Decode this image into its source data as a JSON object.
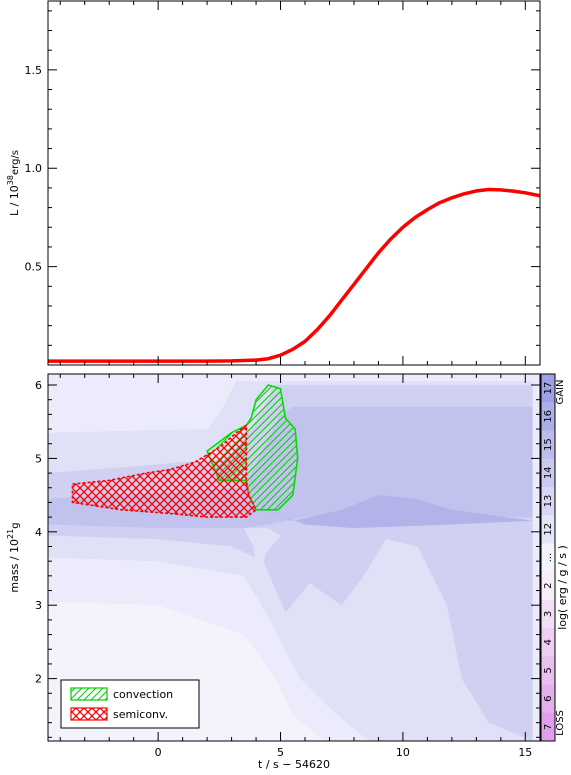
{
  "chart_data": [
    {
      "type": "line",
      "panel": "top",
      "xlabel": "",
      "ylabel": "L / 10^38 erg/s",
      "ylabel_base": "L / 10",
      "ylabel_exp": "38",
      "ylabel_unit": "erg/s",
      "xlim": [
        -4.5,
        15.6
      ],
      "ylim": [
        0.0,
        1.85
      ],
      "yticks": [
        0.5,
        1.0,
        1.5
      ],
      "ytick_labels": [
        "0.5",
        "1.0",
        "1.5"
      ],
      "line_color": "#ff0000",
      "series": [
        {
          "x": [
            -4.5,
            -2,
            0,
            2,
            3,
            4,
            4.5,
            5,
            5.5,
            6,
            6.5,
            7,
            7.5,
            8,
            8.5,
            9,
            9.5,
            10,
            10.5,
            11,
            11.5,
            12,
            12.5,
            13,
            13.5,
            14,
            14.5,
            15,
            15.6
          ],
          "y": [
            0.02,
            0.02,
            0.02,
            0.02,
            0.021,
            0.025,
            0.032,
            0.05,
            0.08,
            0.12,
            0.18,
            0.25,
            0.33,
            0.41,
            0.49,
            0.57,
            0.64,
            0.7,
            0.75,
            0.79,
            0.825,
            0.85,
            0.87,
            0.885,
            0.892,
            0.89,
            0.884,
            0.875,
            0.86
          ]
        }
      ]
    },
    {
      "type": "heatmap",
      "panel": "bottom",
      "xlabel": "t / s − 54620",
      "ylabel": "mass / 10^21 g",
      "ylabel_base": "mass / 10",
      "ylabel_exp": "21",
      "ylabel_unit": "g",
      "xlim": [
        -4.5,
        15.6
      ],
      "ylim": [
        1.15,
        6.15
      ],
      "xticks": [
        0,
        5,
        10,
        15
      ],
      "xtick_labels": [
        "0",
        "5",
        "10",
        "15"
      ],
      "yticks": [
        2,
        3,
        4,
        5,
        6
      ],
      "ytick_labels": [
        "2",
        "3",
        "4",
        "5",
        "6"
      ],
      "regions": [
        {
          "level": 11,
          "color": "#ebebfb",
          "polygon": [
            [
              -4.5,
              6.15
            ],
            [
              15.6,
              6.15
            ],
            [
              15.6,
              1.15
            ],
            [
              6.8,
              1.15
            ],
            [
              5.5,
              1.5
            ],
            [
              4.8,
              2.0
            ],
            [
              3.5,
              2.6
            ],
            [
              0,
              3.0
            ],
            [
              -4.5,
              3.05
            ]
          ]
        },
        {
          "level": 12,
          "color": "#e0e0f6",
          "polygon": [
            [
              -4.5,
              5.35
            ],
            [
              2.0,
              5.4
            ],
            [
              2.5,
              5.6
            ],
            [
              3.2,
              6.05
            ],
            [
              15.6,
              6.05
            ],
            [
              15.6,
              1.15
            ],
            [
              8.6,
              1.15
            ],
            [
              7.0,
              1.6
            ],
            [
              5.8,
              2.0
            ],
            [
              4.4,
              2.9
            ],
            [
              3.5,
              3.4
            ],
            [
              0,
              3.6
            ],
            [
              -4.5,
              3.65
            ]
          ]
        },
        {
          "level": 13,
          "color": "#d0d0f2",
          "polygon": [
            [
              -4.5,
              4.8
            ],
            [
              3.0,
              5.0
            ],
            [
              4.5,
              5.8
            ],
            [
              4.7,
              6.0
            ],
            [
              15.3,
              6.0
            ],
            [
              15.3,
              1.15
            ],
            [
              13.5,
              1.4
            ],
            [
              12.4,
              2.0
            ],
            [
              11.8,
              3.0
            ],
            [
              10.6,
              3.8
            ],
            [
              9.3,
              3.9
            ],
            [
              8.4,
              3.4
            ],
            [
              7.5,
              3.0
            ],
            [
              6.2,
              3.3
            ],
            [
              5.2,
              2.9
            ],
            [
              4.3,
              3.6
            ],
            [
              3.0,
              3.8
            ],
            [
              0,
              3.9
            ],
            [
              -4.5,
              3.95
            ]
          ]
        },
        {
          "level": 14,
          "color": "#c2c2ee",
          "polygon": [
            [
              -4.5,
              4.45
            ],
            [
              3.5,
              4.6
            ],
            [
              5.0,
              5.6
            ],
            [
              5.5,
              5.7
            ],
            [
              15.3,
              5.7
            ],
            [
              15.3,
              4.2
            ],
            [
              12.0,
              4.2
            ],
            [
              10.0,
              4.4
            ],
            [
              8.5,
              4.3
            ],
            [
              6.0,
              4.2
            ],
            [
              4.5,
              4.1
            ],
            [
              3.5,
              4.05
            ],
            [
              0,
              4.05
            ],
            [
              -4.5,
              4.1
            ]
          ]
        },
        {
          "level": 15,
          "color": "#b3b3ea",
          "polygon": [
            [
              4.0,
              4.35
            ],
            [
              5.5,
              4.15
            ],
            [
              7.5,
              4.3
            ],
            [
              9.0,
              4.5
            ],
            [
              10.5,
              4.45
            ],
            [
              12.0,
              4.3
            ],
            [
              15.3,
              4.15
            ],
            [
              12.0,
              4.1
            ],
            [
              8.0,
              4.05
            ],
            [
              6.0,
              4.1
            ]
          ]
        },
        {
          "level": 12,
          "color": "#e0e0f6",
          "polygon": [
            [
              3.5,
              4.05
            ],
            [
              3.9,
              3.8
            ],
            [
              4.1,
              3.3
            ],
            [
              4.4,
              3.7
            ],
            [
              5.0,
              3.95
            ],
            [
              4.5,
              4.05
            ]
          ]
        },
        {
          "level": 11,
          "color": "#ebebfb",
          "polygon": [
            [
              15.3,
              6.15
            ],
            [
              15.6,
              6.15
            ],
            [
              15.6,
              1.15
            ],
            [
              15.3,
              1.15
            ]
          ]
        }
      ],
      "zones": [
        {
          "name": "convection",
          "color": "#00e000",
          "polygon": [
            [
              4.0,
              5.8
            ],
            [
              4.5,
              6.0
            ],
            [
              5.0,
              5.95
            ],
            [
              5.2,
              5.55
            ],
            [
              5.6,
              5.4
            ],
            [
              5.7,
              5.0
            ],
            [
              5.5,
              4.5
            ],
            [
              4.9,
              4.3
            ],
            [
              4.0,
              4.3
            ],
            [
              3.7,
              4.5
            ],
            [
              3.6,
              4.7
            ],
            [
              2.5,
              4.7
            ],
            [
              2.0,
              5.1
            ],
            [
              3.0,
              5.35
            ],
            [
              3.6,
              5.45
            ],
            [
              3.8,
              5.55
            ]
          ]
        },
        {
          "name": "semiconv.",
          "color": "#ff0000",
          "polygon": [
            [
              -3.5,
              4.65
            ],
            [
              -2.0,
              4.7
            ],
            [
              -0.5,
              4.8
            ],
            [
              0.5,
              4.85
            ],
            [
              1.5,
              4.95
            ],
            [
              2.5,
              5.15
            ],
            [
              3.2,
              5.35
            ],
            [
              3.6,
              5.45
            ],
            [
              3.6,
              4.7
            ],
            [
              3.7,
              4.5
            ],
            [
              4.0,
              4.3
            ],
            [
              3.6,
              4.2
            ],
            [
              2.0,
              4.2
            ],
            [
              0.5,
              4.25
            ],
            [
              -1.5,
              4.3
            ],
            [
              -3.5,
              4.4
            ]
          ]
        }
      ],
      "legend": {
        "placement": "bottom-left",
        "entries": [
          "convection",
          "semiconv."
        ]
      },
      "colorbar": {
        "label": "log( erg / g / s )",
        "top_label": "GAIN",
        "bottom_label": "LOSS",
        "gain_ticks": [
          "17",
          "16",
          "15",
          "14",
          "13",
          "12",
          "..."
        ],
        "loss_ticks": [
          "2",
          "3",
          "4",
          "5",
          "6",
          "7"
        ],
        "gain_colors": [
          "#9f9fe6",
          "#adade9",
          "#bbbbed",
          "#c9c9f1",
          "#d7d7f5",
          "#e5e5f8",
          "#f3f3fc"
        ],
        "loss_colors": [
          "#f8eef9",
          "#f3dff5",
          "#eecff2",
          "#e9bff0",
          "#e4afed",
          "#df9feb"
        ]
      }
    }
  ]
}
